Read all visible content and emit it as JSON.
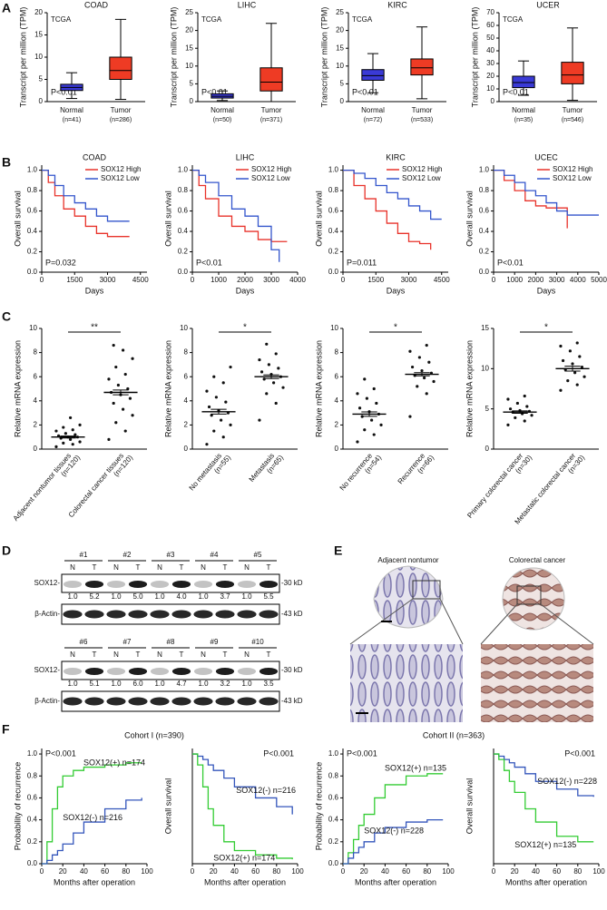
{
  "panel_labels": [
    "A",
    "B",
    "C",
    "D",
    "E",
    "F"
  ],
  "cohorts": [
    "Cohort I (n=390)",
    "Cohort II (n=363)"
  ],
  "chart_data": [
    {
      "type": "box",
      "title": "COAD",
      "source": "TCGA",
      "ylabel": "Transcript per million (TPM)",
      "annotation": "P<0.01",
      "annotation_corner": "bottom-left",
      "categories": [
        "Normal",
        "Tumor"
      ],
      "n_labels": [
        "(n=41)",
        "(n=286)"
      ],
      "boxes": [
        {
          "min": 0.7,
          "q1": 2.5,
          "median": 3.2,
          "q3": 3.9,
          "max": 6.5,
          "color": "#3a3ad6"
        },
        {
          "min": 0.5,
          "q1": 5,
          "median": 7,
          "q3": 10,
          "max": 18.5,
          "color": "#ee3b24"
        }
      ],
      "ylim": [
        0,
        20
      ],
      "yticks": [
        0,
        5,
        10,
        15,
        20
      ]
    },
    {
      "type": "box",
      "title": "LIHC",
      "source": "TCGA",
      "ylabel": "Transcript per million (TPM)",
      "annotation": "P<0.01",
      "annotation_corner": "bottom-left",
      "categories": [
        "Normal",
        "Tumor"
      ],
      "n_labels": [
        "(n=50)",
        "(n=371)"
      ],
      "boxes": [
        {
          "min": 0.3,
          "q1": 1,
          "median": 1.5,
          "q3": 2.2,
          "max": 3,
          "color": "#3a3ad6"
        },
        {
          "min": 0,
          "q1": 3,
          "median": 5.5,
          "q3": 9.5,
          "max": 22,
          "color": "#ee3b24"
        }
      ],
      "ylim": [
        0,
        25
      ],
      "yticks": [
        0,
        5,
        10,
        15,
        20,
        25
      ]
    },
    {
      "type": "box",
      "title": "KIRC",
      "source": "TCGA",
      "ylabel": "Transcript per million (TPM)",
      "annotation": "P<0.01",
      "annotation_corner": "bottom-left",
      "categories": [
        "Normal",
        "Tumor"
      ],
      "n_labels": [
        "(n=72)",
        "(n=533)"
      ],
      "boxes": [
        {
          "min": 2.5,
          "q1": 6,
          "median": 7.3,
          "q3": 9,
          "max": 13.5,
          "color": "#3a3ad6"
        },
        {
          "min": 0.8,
          "q1": 7.5,
          "median": 9.5,
          "q3": 12,
          "max": 21,
          "color": "#ee3b24"
        }
      ],
      "ylim": [
        0,
        25
      ],
      "yticks": [
        0,
        5,
        10,
        15,
        20,
        25
      ]
    },
    {
      "type": "box",
      "title": "UCER",
      "source": "TCGA",
      "ylabel": "Transcript per million (TPM)",
      "annotation": "P<0.01",
      "annotation_corner": "bottom-left",
      "categories": [
        "Normal",
        "Tumor"
      ],
      "n_labels": [
        "(n=35)",
        "(n=546)"
      ],
      "boxes": [
        {
          "min": 5,
          "q1": 11,
          "median": 15,
          "q3": 20,
          "max": 32,
          "color": "#3a3ad6"
        },
        {
          "min": 1,
          "q1": 14,
          "median": 21,
          "q3": 31,
          "max": 58,
          "color": "#ee3b24"
        }
      ],
      "ylim": [
        0,
        70
      ],
      "yticks": [
        0,
        10,
        20,
        30,
        40,
        50,
        60,
        70
      ]
    },
    {
      "type": "line",
      "title": "COAD",
      "ylabel": "Overall survival",
      "xlabel": "Days",
      "annotation": "P=0.032",
      "annotation_corner": "bottom-left",
      "legend": "top-right",
      "x": [
        0,
        300,
        600,
        1000,
        1500,
        2000,
        2500,
        3000,
        4000
      ],
      "series": [
        {
          "name": "SOX12 High",
          "color": "#e8322a",
          "values": [
            1,
            0.88,
            0.75,
            0.62,
            0.55,
            0.45,
            0.38,
            0.35,
            0.35
          ]
        },
        {
          "name": "SOX12 Low",
          "color": "#3355cc",
          "values": [
            1,
            0.95,
            0.85,
            0.75,
            0.68,
            0.62,
            0.55,
            0.5,
            0.5
          ]
        }
      ],
      "xlim": [
        0,
        4800
      ],
      "xticks": [
        0,
        1500,
        3000,
        4500
      ],
      "ylim": [
        0,
        1.05
      ],
      "yticks": [
        {
          "value": 0,
          "label": "0.0"
        },
        0.2,
        0.4,
        0.6,
        0.8,
        {
          "value": 1,
          "label": "1.0"
        }
      ]
    },
    {
      "type": "line",
      "title": "LIHC",
      "ylabel": "Overall survival",
      "xlabel": "Days",
      "annotation": "P<0.01",
      "annotation_corner": "bottom-left",
      "legend": "top-right",
      "x": [
        0,
        250,
        500,
        1000,
        1500,
        2000,
        2500,
        3000,
        3300,
        3600
      ],
      "series": [
        {
          "name": "SOX12 High",
          "color": "#e8322a",
          "values": [
            1,
            0.85,
            0.72,
            0.55,
            0.45,
            0.4,
            0.32,
            0.3,
            0.3,
            0.3
          ]
        },
        {
          "name": "SOX12 Low",
          "color": "#3355cc",
          "values": [
            1,
            0.95,
            0.88,
            0.75,
            0.62,
            0.55,
            0.45,
            0.22,
            0.1,
            null
          ]
        }
      ],
      "xlim": [
        0,
        4000
      ],
      "xticks": [
        0,
        1000,
        2000,
        3000,
        4000
      ],
      "ylim": [
        0,
        1.05
      ],
      "yticks": [
        {
          "value": 0,
          "label": "0.0"
        },
        0.2,
        0.4,
        0.6,
        0.8,
        {
          "value": 1,
          "label": "1.0"
        }
      ]
    },
    {
      "type": "line",
      "title": "KIRC",
      "ylabel": "Overall survival",
      "xlabel": "Days",
      "annotation": "P=0.011",
      "annotation_corner": "bottom-left",
      "legend": "top-right",
      "x": [
        0,
        500,
        1000,
        1500,
        2000,
        2500,
        3000,
        3500,
        4000,
        4500
      ],
      "series": [
        {
          "name": "SOX12 High",
          "color": "#e8322a",
          "values": [
            1,
            0.85,
            0.72,
            0.6,
            0.48,
            0.38,
            0.3,
            0.28,
            0.22,
            null
          ]
        },
        {
          "name": "SOX12 Low",
          "color": "#3355cc",
          "values": [
            1,
            0.97,
            0.92,
            0.85,
            0.78,
            0.72,
            0.65,
            0.6,
            0.52,
            0.52
          ]
        }
      ],
      "xlim": [
        0,
        4800
      ],
      "xticks": [
        0,
        1500,
        3000,
        4500
      ],
      "ylim": [
        0,
        1.05
      ],
      "yticks": [
        {
          "value": 0,
          "label": "0.0"
        },
        0.2,
        0.4,
        0.6,
        0.8,
        {
          "value": 1,
          "label": "1.0"
        }
      ]
    },
    {
      "type": "line",
      "title": "UCEC",
      "ylabel": "Overall survival",
      "xlabel": "Days",
      "annotation": "P<0.01",
      "annotation_corner": "bottom-left",
      "legend": "top-right",
      "x": [
        0,
        500,
        1000,
        1500,
        2000,
        2500,
        3000,
        3500,
        4000,
        5000
      ],
      "series": [
        {
          "name": "SOX12 High",
          "color": "#e8322a",
          "values": [
            1,
            0.9,
            0.8,
            0.7,
            0.65,
            0.63,
            0.63,
            0.43,
            null,
            null
          ]
        },
        {
          "name": "SOX12 Low",
          "color": "#3355cc",
          "values": [
            1,
            0.95,
            0.88,
            0.8,
            0.75,
            0.68,
            0.6,
            0.56,
            0.56,
            0.56
          ]
        }
      ],
      "xlim": [
        0,
        5000
      ],
      "xticks": [
        0,
        1000,
        2000,
        3000,
        4000,
        5000
      ],
      "ylim": [
        0,
        1.05
      ],
      "yticks": [
        {
          "value": 0,
          "label": "0.0"
        },
        0.2,
        0.4,
        0.6,
        0.8,
        {
          "value": 1,
          "label": "1.0"
        }
      ]
    },
    {
      "type": "dot",
      "ylabel": "Relative mRNA expression",
      "significance": "**",
      "categories": [
        "Adjacent nontumor tissues",
        "Colorectal cancer tissues"
      ],
      "n_labels": [
        "(n=120)",
        "(n=120)"
      ],
      "groups": [
        {
          "points": [
            0.2,
            0.4,
            0.5,
            0.6,
            0.8,
            0.9,
            1.0,
            1.0,
            1.1,
            1.2,
            1.3,
            1.5,
            1.6,
            1.8,
            2.0,
            2.6
          ],
          "mean": 1.0,
          "sem": 0.08
        },
        {
          "points": [
            0.8,
            1.5,
            2.2,
            2.8,
            3.3,
            3.8,
            4.2,
            4.5,
            4.7,
            5.0,
            5.3,
            5.8,
            6.2,
            6.8,
            7.5,
            8.2,
            8.6
          ],
          "mean": 4.7,
          "sem": 0.2
        }
      ],
      "ylim": [
        0,
        10
      ],
      "yticks": [
        0,
        2,
        4,
        6,
        8,
        10
      ]
    },
    {
      "type": "dot",
      "ylabel": "Relative mRNA expression",
      "significance": "*",
      "categories": [
        "No metastasis",
        "Metastasis"
      ],
      "n_labels": [
        "(n=55)",
        "(n=65)"
      ],
      "groups": [
        {
          "points": [
            0.4,
            1.0,
            1.5,
            2.0,
            2.4,
            2.8,
            3.0,
            3.2,
            3.5,
            3.9,
            4.3,
            4.8,
            5.5,
            6.0,
            6.8
          ],
          "mean": 3.1,
          "sem": 0.2
        },
        {
          "points": [
            2.4,
            3.8,
            4.6,
            5.1,
            5.5,
            5.8,
            6.0,
            6.2,
            6.4,
            6.7,
            7.0,
            7.4,
            7.9,
            8.7
          ],
          "mean": 6.0,
          "sem": 0.15
        }
      ],
      "ylim": [
        0,
        10
      ],
      "yticks": [
        0,
        2,
        4,
        6,
        8,
        10
      ]
    },
    {
      "type": "dot",
      "ylabel": "Relative mRNA expression",
      "significance": "*",
      "categories": [
        "No recurrence",
        "Recurrence"
      ],
      "n_labels": [
        "(n=54)",
        "(n=66)"
      ],
      "groups": [
        {
          "points": [
            0.6,
            1.2,
            1.6,
            2.0,
            2.4,
            2.7,
            2.9,
            3.1,
            3.4,
            3.8,
            4.2,
            4.6,
            5.0,
            5.8
          ],
          "mean": 2.9,
          "sem": 0.18
        },
        {
          "points": [
            2.7,
            4.6,
            5.2,
            5.6,
            5.9,
            6.1,
            6.3,
            6.5,
            6.8,
            7.2,
            7.6,
            8.1,
            8.6
          ],
          "mean": 6.2,
          "sem": 0.13
        }
      ],
      "ylim": [
        0,
        10
      ],
      "yticks": [
        0,
        2,
        4,
        6,
        8,
        10
      ]
    },
    {
      "type": "dot",
      "ylabel": "Relative mRNA expression",
      "significance": "*",
      "categories": [
        "Primary colorectal cancer",
        "Metastatic colorectal cancer"
      ],
      "n_labels": [
        "(n=30)",
        "(n=30)"
      ],
      "groups": [
        {
          "points": [
            3.0,
            3.5,
            3.9,
            4.2,
            4.4,
            4.6,
            4.7,
            4.8,
            5.0,
            5.3,
            5.7,
            6.2,
            6.6
          ],
          "mean": 4.6,
          "sem": 0.15
        },
        {
          "points": [
            7.3,
            8.0,
            8.5,
            9.0,
            9.5,
            9.9,
            10.2,
            10.6,
            11.0,
            11.5,
            12.2,
            12.8,
            13.2
          ],
          "mean": 10.0,
          "sem": 0.3
        }
      ],
      "ylim": [
        0,
        15
      ],
      "yticks": [
        0,
        5,
        10,
        15
      ]
    },
    {
      "type": "line",
      "ylabel": "Probability of recurrence",
      "xlabel": "Months after operation",
      "annotation": "P<0.001",
      "annotation_corner": "top-left",
      "x": [
        0,
        5,
        10,
        15,
        20,
        30,
        40,
        60,
        80,
        95
      ],
      "series": [
        {
          "name": "SOX12(+) n=174",
          "color": "#33cc33",
          "values": [
            0,
            0.2,
            0.5,
            0.7,
            0.8,
            0.85,
            0.88,
            0.9,
            0.92,
            0.92
          ]
        },
        {
          "name": "SOX12(-) n=216",
          "color": "#3355bb",
          "values": [
            0,
            0.03,
            0.08,
            0.12,
            0.18,
            0.28,
            0.38,
            0.5,
            0.58,
            0.6
          ]
        }
      ],
      "xlim": [
        0,
        100
      ],
      "xticks": [
        0,
        20,
        40,
        60,
        80,
        100
      ],
      "ylim": [
        0,
        1.05
      ],
      "yticks": [
        {
          "value": 0,
          "label": "0.0"
        },
        0.2,
        0.4,
        0.6,
        0.8,
        {
          "value": 1,
          "label": "1.0"
        }
      ]
    },
    {
      "type": "line",
      "ylabel": "Overall survival",
      "xlabel": "Months after operation",
      "annotation": "P<0.001",
      "annotation_corner": "top-right",
      "x": [
        0,
        5,
        10,
        15,
        20,
        30,
        40,
        60,
        80,
        95
      ],
      "series": [
        {
          "name": "SOX12(-) n=216",
          "color": "#3355bb",
          "values": [
            1,
            0.98,
            0.95,
            0.9,
            0.85,
            0.78,
            0.7,
            0.6,
            0.52,
            0.45
          ]
        },
        {
          "name": "SOX12(+) n=174",
          "color": "#33cc33",
          "values": [
            1,
            0.9,
            0.7,
            0.5,
            0.35,
            0.2,
            0.12,
            0.08,
            0.05,
            0.04
          ]
        }
      ],
      "xlim": [
        0,
        100
      ],
      "xticks": [
        0,
        20,
        40,
        60,
        80,
        100
      ],
      "ylim": [
        0,
        1.05
      ]
    },
    {
      "type": "line",
      "ylabel": "Probability of recurrence",
      "xlabel": "Months after operation",
      "annotation": "P<0.001",
      "annotation_corner": "top-left",
      "x": [
        0,
        5,
        10,
        15,
        20,
        30,
        40,
        60,
        80,
        95
      ],
      "series": [
        {
          "name": "SOX12(+) n=135",
          "color": "#33cc33",
          "values": [
            0,
            0.1,
            0.22,
            0.35,
            0.45,
            0.6,
            0.72,
            0.8,
            0.82,
            0.82
          ]
        },
        {
          "name": "SOX12(-) n=228",
          "color": "#3355bb",
          "values": [
            0,
            0.05,
            0.1,
            0.15,
            0.2,
            0.28,
            0.33,
            0.38,
            0.4,
            0.4
          ]
        }
      ],
      "xlim": [
        0,
        100
      ],
      "xticks": [
        0,
        20,
        40,
        60,
        80,
        100
      ],
      "ylim": [
        0,
        1.05
      ],
      "yticks": [
        {
          "value": 0,
          "label": "0.0"
        },
        0.2,
        0.4,
        0.6,
        0.8,
        {
          "value": 1,
          "label": "1.0"
        }
      ]
    },
    {
      "type": "line",
      "ylabel": "Overall survival",
      "xlabel": "Months after operation",
      "annotation": "P<0.001",
      "annotation_corner": "top-right",
      "x": [
        0,
        5,
        10,
        15,
        20,
        30,
        40,
        60,
        80,
        95
      ],
      "series": [
        {
          "name": "SOX12(-) n=228",
          "color": "#3355bb",
          "values": [
            1,
            0.98,
            0.95,
            0.92,
            0.88,
            0.82,
            0.75,
            0.68,
            0.62,
            0.61
          ]
        },
        {
          "name": "SOX12(+) n=135",
          "color": "#33cc33",
          "values": [
            1,
            0.95,
            0.85,
            0.75,
            0.65,
            0.5,
            0.38,
            0.25,
            0.2,
            0.2
          ]
        }
      ],
      "xlim": [
        0,
        100
      ],
      "xticks": [
        0,
        20,
        40,
        60,
        80,
        100
      ],
      "ylim": [
        0,
        1.05
      ]
    }
  ],
  "western_blot": {
    "lane_labels": [
      "N",
      "T"
    ],
    "target": "SOX12-",
    "loading": "β-Actin-",
    "sizes": [
      "-30 kD",
      "-43 kD"
    ],
    "rows": [
      {
        "samples": [
          "#1",
          "#2",
          "#3",
          "#4",
          "#5"
        ],
        "ratios": [
          "1.0",
          "5.2",
          "1.0",
          "5.0",
          "1.0",
          "4.0",
          "1.0",
          "3.7",
          "1.0",
          "5.5"
        ]
      },
      {
        "samples": [
          "#6",
          "#7",
          "#8",
          "#9",
          "#10"
        ],
        "ratios": [
          "1.0",
          "5.1",
          "1.0",
          "6.0",
          "1.0",
          "4.7",
          "1.0",
          "3.2",
          "1.0",
          "3.5"
        ]
      }
    ]
  },
  "ihc": {
    "labels": [
      "Adjacent nontumor",
      "Colorectal cancer"
    ]
  }
}
